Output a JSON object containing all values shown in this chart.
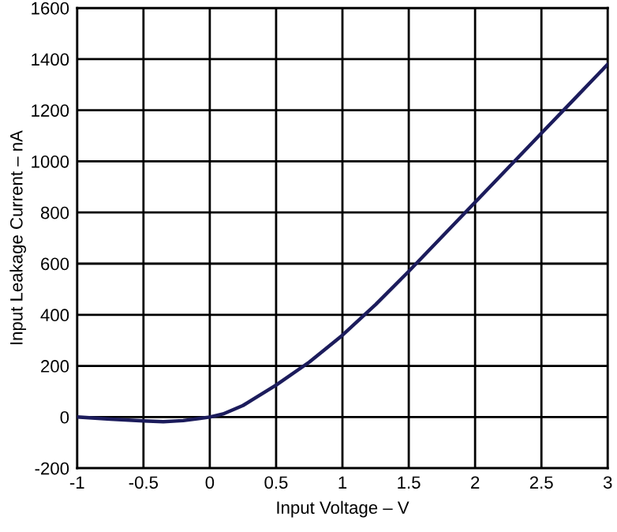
{
  "chart_data": {
    "type": "line",
    "xlabel": "Input Voltage – V",
    "ylabel": "Input Leakage Current – nA",
    "x": [
      -1,
      -0.75,
      -0.5,
      -0.35,
      -0.2,
      0,
      0.1,
      0.25,
      0.5,
      0.75,
      1,
      1.25,
      1.5,
      1.75,
      2,
      2.25,
      2.5,
      2.75,
      3
    ],
    "series": [
      {
        "color": "#1c1c5c",
        "values": [
          0,
          -8,
          -15,
          -18,
          -14,
          0,
          12,
          45,
          125,
          215,
          320,
          440,
          570,
          705,
          840,
          975,
          1110,
          1245,
          1380
        ]
      }
    ],
    "xlim": [
      -1,
      3
    ],
    "xticks": [
      -1,
      -0.5,
      0,
      0.5,
      1,
      1.5,
      2,
      2.5,
      3
    ],
    "ylim": [
      -200,
      1600
    ],
    "yticks": [
      -200,
      0,
      200,
      400,
      600,
      800,
      1000,
      1200,
      1400,
      1600
    ],
    "grid": true,
    "legend": false,
    "marker": "none",
    "line_style": "solid"
  }
}
